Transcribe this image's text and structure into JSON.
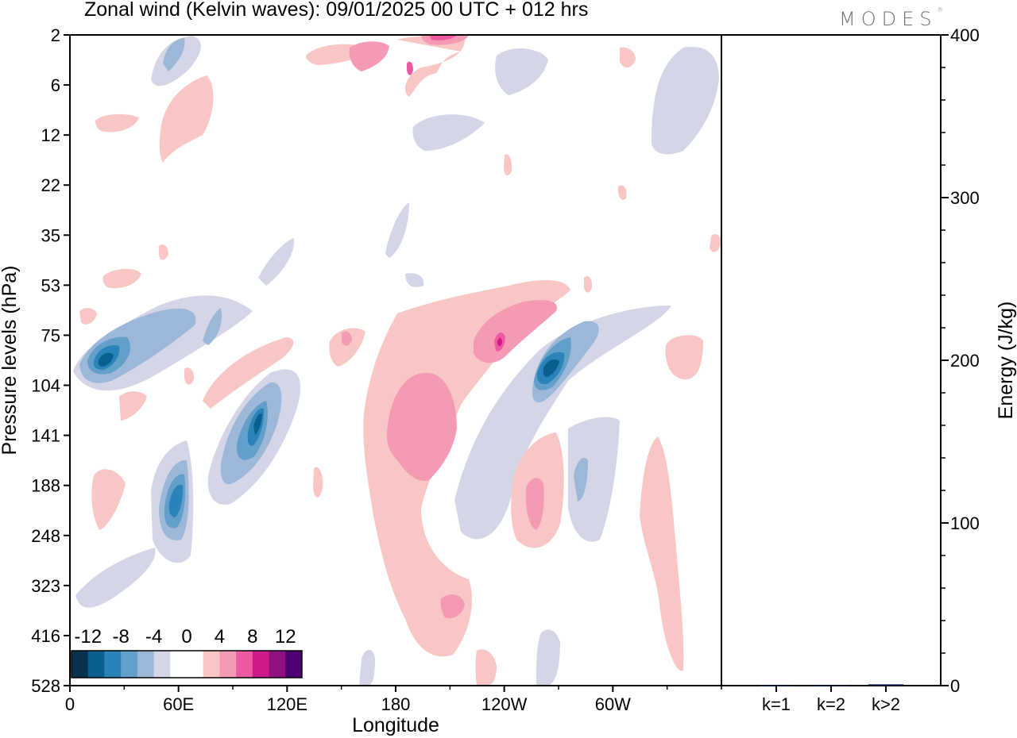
{
  "title": "Zonal wind (Kelvin waves):  09/01/2025  00 UTC  + 012 hrs",
  "brand": "MODES",
  "brand_mark": "®",
  "colors": {
    "neg": [
      "#08334f",
      "#0a5f8e",
      "#2a83b9",
      "#629fc9",
      "#9cb7d7",
      "#d4d6e7"
    ],
    "zero": "#ffffff",
    "pos": [
      "#f8c6c4",
      "#f59ab5",
      "#ee5aa1",
      "#cd1b8c",
      "#92107f",
      "#4c0071"
    ]
  },
  "chart_data": [
    {
      "type": "heatmap",
      "title": "Zonal wind (Kelvin waves):  09/01/2025  00 UTC  + 012 hrs",
      "xlabel": "Longitude",
      "ylabel": "Pressure levels (hPa)",
      "x_ticks": [
        "0",
        "60E",
        "120E",
        "180",
        "120W",
        "60W"
      ],
      "x_tick_values": [
        0,
        60,
        120,
        180,
        240,
        300
      ],
      "xlim": [
        0,
        360
      ],
      "y_ticks": [
        "2",
        "6",
        "12",
        "22",
        "35",
        "53",
        "75",
        "104",
        "141",
        "188",
        "248",
        "323",
        "416",
        "528"
      ],
      "colorbar": {
        "levels": [
          -12,
          -10,
          -8,
          -6,
          -4,
          -2,
          0,
          2,
          4,
          6,
          8,
          10,
          12
        ],
        "labels": [
          "-12",
          "-8",
          "-4",
          "0",
          "4",
          "8",
          "12"
        ]
      },
      "features": [
        {
          "lon": 15,
          "level_index": 6.6,
          "value": -11
        },
        {
          "lon": 100,
          "level_index": 7.9,
          "value": -10
        },
        {
          "lon": 58,
          "level_index": 9.2,
          "value": -9
        },
        {
          "lon": 248,
          "level_index": 6.7,
          "value": -11
        },
        {
          "lon": 190,
          "level_index": 8.0,
          "value": 6
        },
        {
          "lon": 230,
          "level_index": 6.3,
          "value": 8
        },
        {
          "lon": 254,
          "level_index": 9.4,
          "value": 6
        },
        {
          "lon": 203,
          "level_index": 11.3,
          "value": 5
        },
        {
          "lon": 195,
          "level_index": 0.0,
          "value": 8
        }
      ]
    },
    {
      "type": "bar",
      "ylabel": "Energy (J/kg)",
      "categories": [
        "k=1",
        "k=2",
        "k>2"
      ],
      "values": [
        0.3,
        0.3,
        0.8
      ],
      "ylim": [
        0,
        400
      ],
      "y_ticks": [
        "0",
        "100",
        "200",
        "300",
        "400"
      ],
      "y_tick_values": [
        0,
        100,
        200,
        300,
        400
      ]
    }
  ]
}
